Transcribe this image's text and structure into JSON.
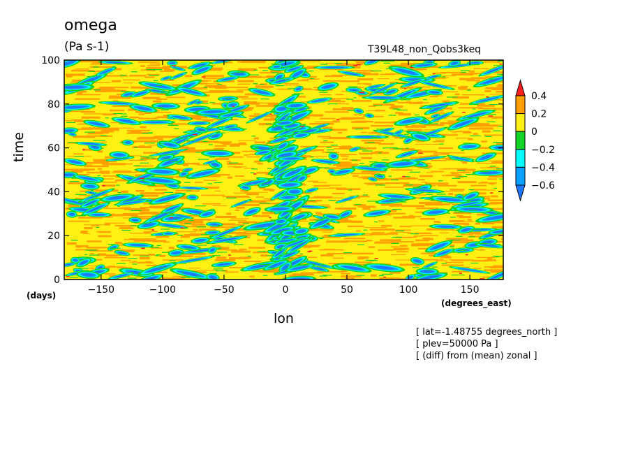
{
  "header": {
    "title": "omega",
    "units": "(Pa s-1)",
    "run_name": "T39L48_non_Qobs3keq"
  },
  "footnotes": [
    "[ lat=-1.48755 degrees_north ]",
    "[ plev=50000 Pa ]",
    "[ (diff) from (mean) zonal ]"
  ],
  "colors": {
    "le_-0.6": "#1e78ff",
    "-0.6_-0.4": "#0aa0ff",
    "-0.4_-0.2": "#00ffff",
    "-0.2_0": "#14d228",
    "0_0.2": "#fff014",
    "0.2_0.4": "#ffa000",
    "ge_0.4": "#ff1e1e"
  },
  "chart_data": {
    "type": "heatmap",
    "variable": "omega",
    "units": "(Pa s-1)",
    "xlabel": "lon",
    "ylabel": "time",
    "x_unit": "(degrees_east)",
    "y_unit": "(days)",
    "xlim": [
      -180,
      177.1875
    ],
    "ylim": [
      0,
      100
    ],
    "x_ticks": [
      -150,
      -100,
      -50,
      0,
      50,
      100,
      150
    ],
    "y_ticks": [
      0,
      20,
      40,
      60,
      80,
      100
    ],
    "x_tick_labels": [
      "−150",
      "−100",
      "−50",
      "0",
      "50",
      "100",
      "150"
    ],
    "y_tick_labels": [
      "0",
      "20",
      "40",
      "60",
      "80",
      "100"
    ],
    "colorbar": {
      "levels": [
        -0.6,
        -0.4,
        -0.2,
        0,
        0.2,
        0.4
      ],
      "labels": [
        "−0.6",
        "−0.4",
        "−0.2",
        "0",
        "0.2",
        "0.4"
      ],
      "extend": "both",
      "colors": [
        "#1e78ff",
        "#0aa0ff",
        "#00ffff",
        "#14d228",
        "#fff014",
        "#ffa000",
        "#ff1e1e"
      ]
    },
    "description": "Hovmoller diagram of omega anomaly; dominated by 0 to 0.2 (yellow) and 0.2 to 0.4 (orange) noise with elongated negative (blue/green) streaks, most concentrated near lon 0 to 10",
    "grid": false
  }
}
